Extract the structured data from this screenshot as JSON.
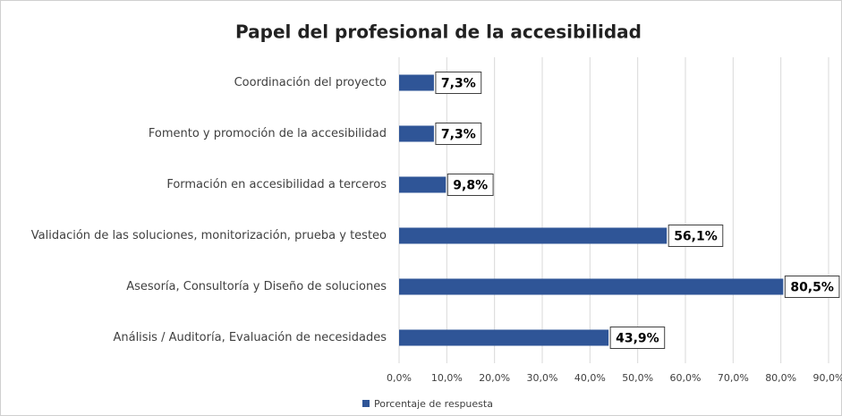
{
  "chart_data": {
    "type": "barh",
    "title": "Papel del profesional de la accesibilidad",
    "categories": [
      "Coordinación del proyecto",
      "Fomento y promoción de la accesibilidad",
      "Formación en accesibilidad a terceros",
      "Validación de las soluciones, monitorización, prueba y testeo",
      "Asesoría, Consultoría y Diseño de soluciones",
      "Análisis / Auditoría, Evaluación de necesidades"
    ],
    "series": [
      {
        "name": "Porcentaje de respuesta",
        "color": "#2f5597",
        "values": [
          7.3,
          7.3,
          9.8,
          56.1,
          80.5,
          43.9
        ],
        "value_labels": [
          "7,3%",
          "7,3%",
          "9,8%",
          "56,1%",
          "80,5%",
          "43,9%"
        ]
      }
    ],
    "xlim": [
      0,
      90
    ],
    "xticks": [
      {
        "value": 0,
        "label": "0,0%"
      },
      {
        "value": 10,
        "label": "10,0%"
      },
      {
        "value": 20,
        "label": "20,0%"
      },
      {
        "value": 30,
        "label": "30,0%"
      },
      {
        "value": 40,
        "label": "40,0%"
      },
      {
        "value": 50,
        "label": "50,0%"
      },
      {
        "value": 60,
        "label": "60,0%"
      },
      {
        "value": 70,
        "label": "70,0%"
      },
      {
        "value": 80,
        "label": "80,0%"
      },
      {
        "value": 90,
        "label": "90,0%"
      }
    ],
    "grid": true,
    "legend": "bottom-left"
  }
}
